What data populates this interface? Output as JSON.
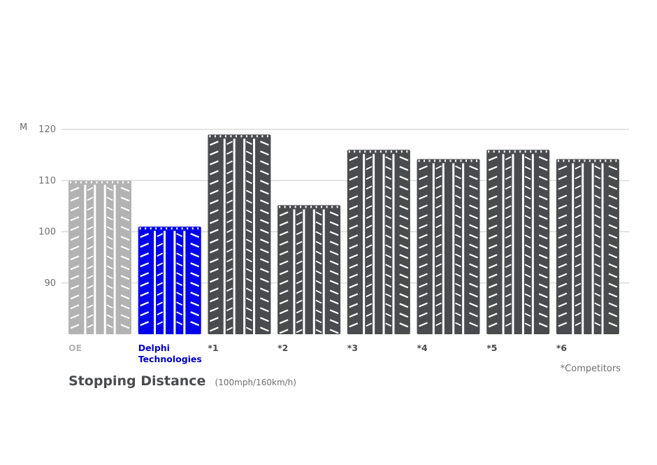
{
  "chart_data": {
    "type": "bar",
    "title": "Stopping Distance",
    "subtitle": "(100mph/160km/h)",
    "ylabel": "M",
    "ylim": [
      80,
      120
    ],
    "yticks": [
      "90",
      "100",
      "110",
      "120"
    ],
    "grid": true,
    "categories": [
      "OE",
      "Delphi Technologies",
      "*1",
      "*2",
      "*3",
      "*4",
      "*5",
      "*6"
    ],
    "values": [
      110,
      101,
      119,
      105.2,
      116,
      114.2,
      116,
      114.2
    ],
    "colors": [
      "#b3b3b3",
      "#0000ee",
      "#4a4b4e",
      "#4a4b4e",
      "#4a4b4e",
      "#4a4b4e",
      "#4a4b4e",
      "#4a4b4e"
    ],
    "footnote": "*Competitors"
  }
}
